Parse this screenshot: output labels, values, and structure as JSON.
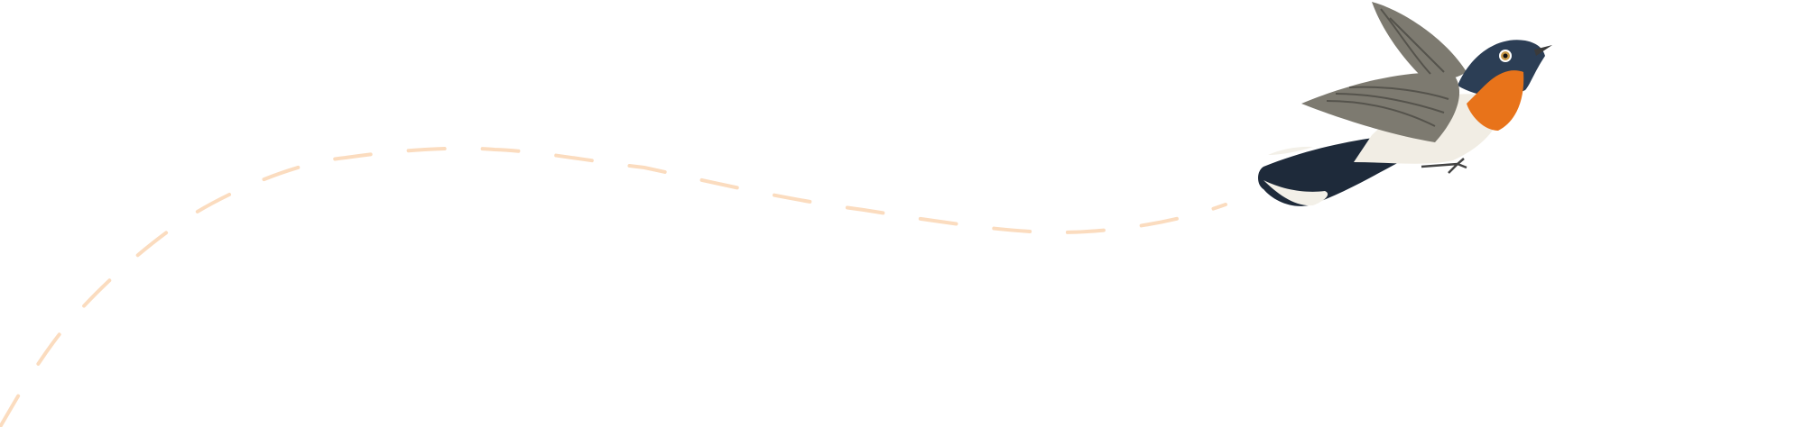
{
  "illustration": {
    "subject": "bird-in-flight",
    "colors": {
      "background": "#ffffff",
      "flight_path": "#fbdcbf",
      "bird_head": "#2c3e55",
      "bird_throat": "#e8731a",
      "bird_belly": "#f1ede4",
      "bird_wing": "#7d7a70",
      "bird_tail": "#1e2a3a"
    }
  }
}
